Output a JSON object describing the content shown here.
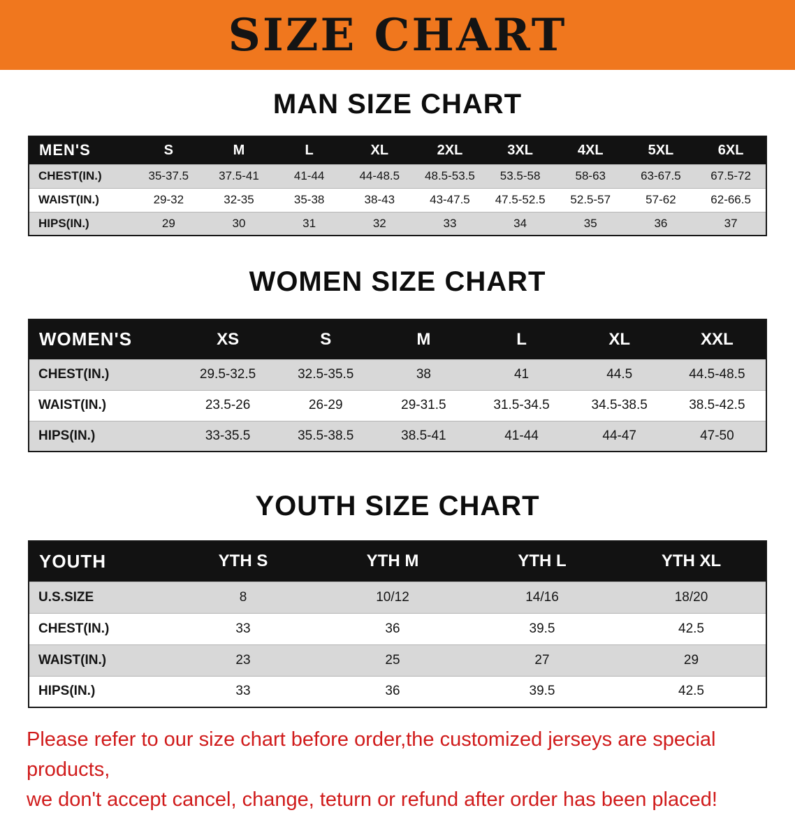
{
  "banner": {
    "title": "SIZE CHART"
  },
  "men": {
    "heading": "MAN SIZE CHART",
    "table": {
      "header": [
        "MEN'S",
        "S",
        "M",
        "L",
        "XL",
        "2XL",
        "3XL",
        "4XL",
        "5XL",
        "6XL"
      ],
      "rows": [
        [
          "CHEST(IN.)",
          "35-37.5",
          "37.5-41",
          "41-44",
          "44-48.5",
          "48.5-53.5",
          "53.5-58",
          "58-63",
          "63-67.5",
          "67.5-72"
        ],
        [
          "WAIST(IN.)",
          "29-32",
          "32-35",
          "35-38",
          "38-43",
          "43-47.5",
          "47.5-52.5",
          "52.5-57",
          "57-62",
          "62-66.5"
        ],
        [
          "HIPS(IN.)",
          "29",
          "30",
          "31",
          "32",
          "33",
          "34",
          "35",
          "36",
          "37"
        ]
      ]
    }
  },
  "women": {
    "heading": "WOMEN SIZE CHART",
    "table": {
      "header": [
        "WOMEN'S",
        "XS",
        "S",
        "M",
        "L",
        "XL",
        "XXL"
      ],
      "rows": [
        [
          "CHEST(IN.)",
          "29.5-32.5",
          "32.5-35.5",
          "38",
          "41",
          "44.5",
          "44.5-48.5"
        ],
        [
          "WAIST(IN.)",
          "23.5-26",
          "26-29",
          "29-31.5",
          "31.5-34.5",
          "34.5-38.5",
          "38.5-42.5"
        ],
        [
          "HIPS(IN.)",
          "33-35.5",
          "35.5-38.5",
          "38.5-41",
          "41-44",
          "44-47",
          "47-50"
        ]
      ]
    }
  },
  "youth": {
    "heading": "YOUTH SIZE CHART",
    "table": {
      "header": [
        "YOUTH",
        "YTH S",
        "YTH M",
        "YTH L",
        "YTH XL"
      ],
      "rows": [
        [
          "U.S.SIZE",
          "8",
          "10/12",
          "14/16",
          "18/20"
        ],
        [
          "CHEST(IN.)",
          "33",
          "36",
          "39.5",
          "42.5"
        ],
        [
          "WAIST(IN.)",
          "23",
          "25",
          "27",
          "29"
        ],
        [
          "HIPS(IN.)",
          "33",
          "36",
          "39.5",
          "42.5"
        ]
      ]
    }
  },
  "notice": {
    "line1": "Please refer to our size chart before order,the customized jerseys are special products,",
    "line2": "we don't accept cancel, change, teturn or refund after order has been placed!"
  },
  "colors": {
    "banner_bg": "#f0771e",
    "table_header_bg": "#121212",
    "row_stripe": "#d8d8d8",
    "notice_text": "#d01b1b"
  }
}
